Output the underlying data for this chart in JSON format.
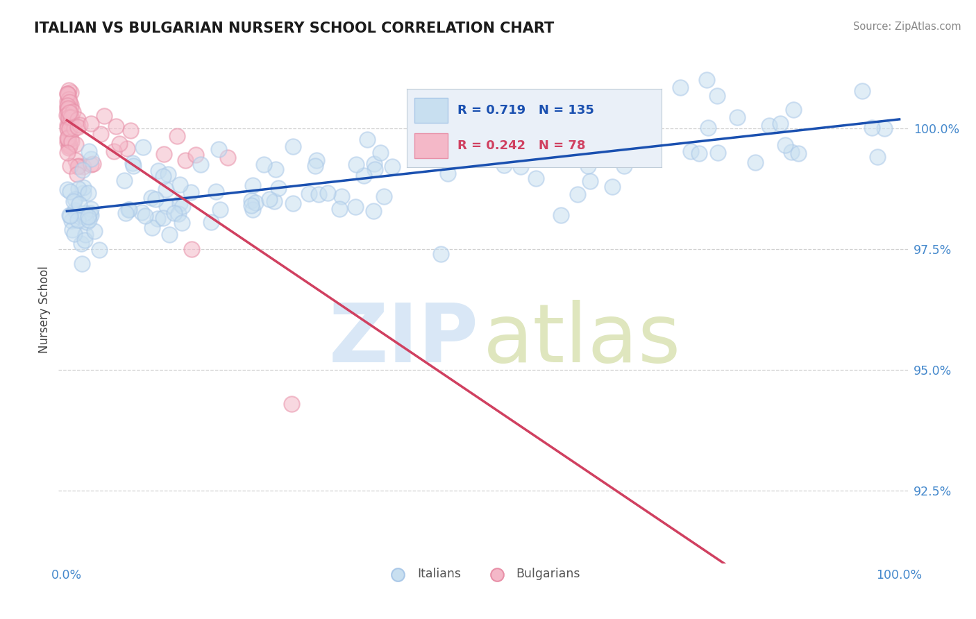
{
  "title": "ITALIAN VS BULGARIAN NURSERY SCHOOL CORRELATION CHART",
  "source": "Source: ZipAtlas.com",
  "ylabel": "Nursery School",
  "ylim": [
    91.0,
    101.5
  ],
  "xlim": [
    -1.0,
    101.0
  ],
  "ytick_vals": [
    92.5,
    95.0,
    97.5,
    100.0
  ],
  "ytick_labels": [
    "92.5%",
    "95.0%",
    "97.5%",
    "100.0%"
  ],
  "xtick_vals": [
    0,
    100
  ],
  "xtick_labels": [
    "0.0%",
    "100.0%"
  ],
  "italian_R": 0.719,
  "italian_N": 135,
  "bulgarian_R": 0.242,
  "bulgarian_N": 78,
  "italian_color": "#aac8e8",
  "italian_fill": "#c8dff0",
  "bulgarian_color": "#e890a8",
  "bulgarian_fill": "#f4b8c8",
  "italian_line_color": "#1a50b0",
  "bulgarian_line_color": "#d04060",
  "legend_bg": "#eaf0f8",
  "legend_border": "#c0ccd8",
  "watermark_zip_color": "#c0d8f0",
  "watermark_atlas_color": "#b8c870",
  "background_color": "#ffffff",
  "grid_color": "#cccccc",
  "title_color": "#1a1a1a",
  "source_color": "#888888",
  "tick_color": "#4488cc",
  "ylabel_color": "#444444"
}
